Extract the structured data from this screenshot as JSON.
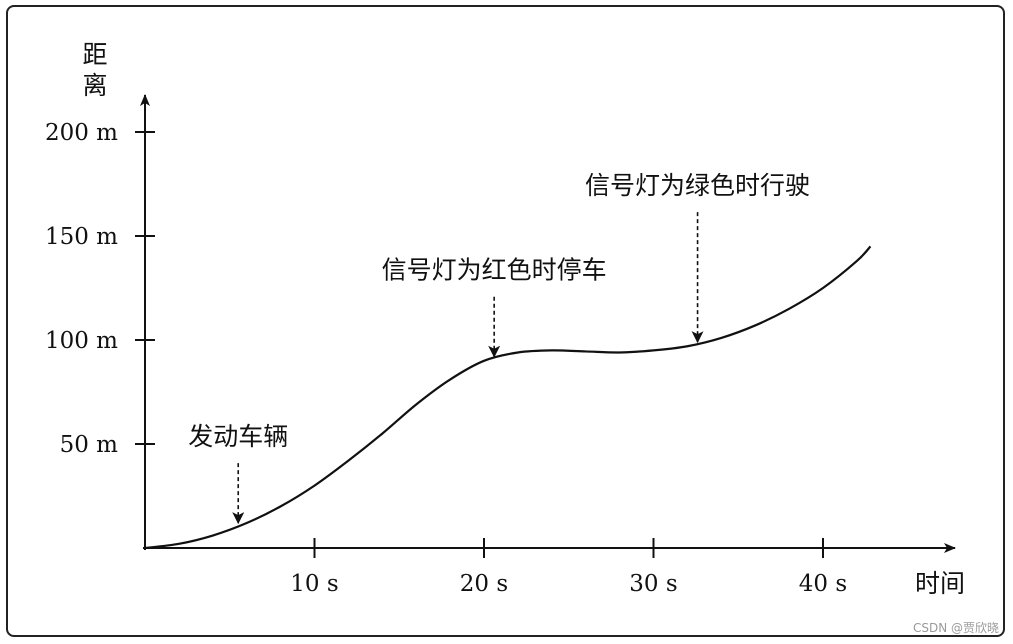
{
  "chart_data": {
    "type": "line",
    "title": "",
    "xlabel": "时间",
    "ylabel": "距离",
    "xlim": [
      0,
      47
    ],
    "ylim": [
      0,
      230
    ],
    "x_ticks": [
      {
        "value": 10,
        "label": "10 s"
      },
      {
        "value": 20,
        "label": "20 s"
      },
      {
        "value": 30,
        "label": "30 s"
      },
      {
        "value": 40,
        "label": "40 s"
      }
    ],
    "y_ticks": [
      {
        "value": 50,
        "label": "50 m"
      },
      {
        "value": 100,
        "label": "100 m"
      },
      {
        "value": 150,
        "label": "150 m"
      },
      {
        "value": 200,
        "label": "200 m"
      }
    ],
    "grid": false,
    "legend": "none",
    "series": [
      {
        "x": [
          0,
          2,
          4,
          6,
          8,
          10,
          12,
          14,
          16,
          18,
          20,
          22,
          24,
          26,
          28,
          30,
          32,
          34,
          36,
          38,
          40,
          42,
          42.8
        ],
        "values": [
          0,
          2,
          6,
          12,
          20,
          30,
          42,
          55,
          69,
          81,
          90,
          94,
          95,
          94.5,
          94,
          95,
          97,
          101,
          107,
          115,
          125,
          138,
          145
        ]
      }
    ],
    "annotations": [
      {
        "text": "发动车辆",
        "x": 5.5,
        "y": 11
      },
      {
        "text": "信号灯为红色时停车",
        "x": 20.6,
        "y": 91
      },
      {
        "text": "信号灯为绿色时行驶",
        "x": 32.6,
        "y": 98
      }
    ]
  },
  "watermark": "CSDN @贾欣晓",
  "colors": {
    "line": "#111111",
    "frame": "#222222"
  }
}
